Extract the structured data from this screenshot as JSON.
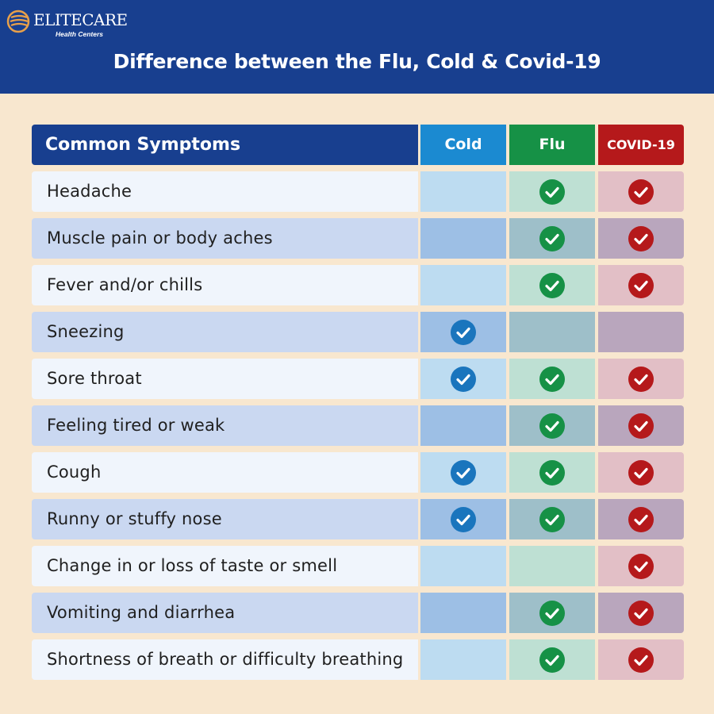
{
  "header": {
    "logo": {
      "brand": "ELITECARE",
      "sub": "Health Centers"
    },
    "title": "Difference between the Flu, Cold & Covid-19"
  },
  "colors": {
    "header_bg": "#183f8f",
    "page_bg": "#f8e7cf",
    "cold": "#1b8ad1",
    "flu": "#169146",
    "covid": "#b5191b",
    "check_cold": "#1a75bd",
    "check_flu": "#169146",
    "check_covid": "#b5191b"
  },
  "table": {
    "columns": {
      "symptoms": "Common Symptoms",
      "cold": "Cold",
      "flu": "Flu",
      "covid": "COVID-19"
    },
    "rows": [
      {
        "symptom": "Headache",
        "cold": false,
        "flu": true,
        "covid": true
      },
      {
        "symptom": "Muscle pain or body aches",
        "cold": false,
        "flu": true,
        "covid": true
      },
      {
        "symptom": "Fever and/or chills",
        "cold": false,
        "flu": true,
        "covid": true
      },
      {
        "symptom": "Sneezing",
        "cold": true,
        "flu": false,
        "covid": false
      },
      {
        "symptom": "Sore throat",
        "cold": true,
        "flu": true,
        "covid": true
      },
      {
        "symptom": "Feeling tired or weak",
        "cold": false,
        "flu": true,
        "covid": true
      },
      {
        "symptom": "Cough",
        "cold": true,
        "flu": true,
        "covid": true
      },
      {
        "symptom": "Runny or stuffy nose",
        "cold": true,
        "flu": true,
        "covid": true
      },
      {
        "symptom": "Change in or loss of taste or smell",
        "cold": false,
        "flu": false,
        "covid": true
      },
      {
        "symptom": "Vomiting and diarrhea",
        "cold": false,
        "flu": true,
        "covid": true
      },
      {
        "symptom": "Shortness of breath or difficulty breathing",
        "cold": false,
        "flu": true,
        "covid": true
      }
    ],
    "check_icon": "check-circle-icon"
  }
}
